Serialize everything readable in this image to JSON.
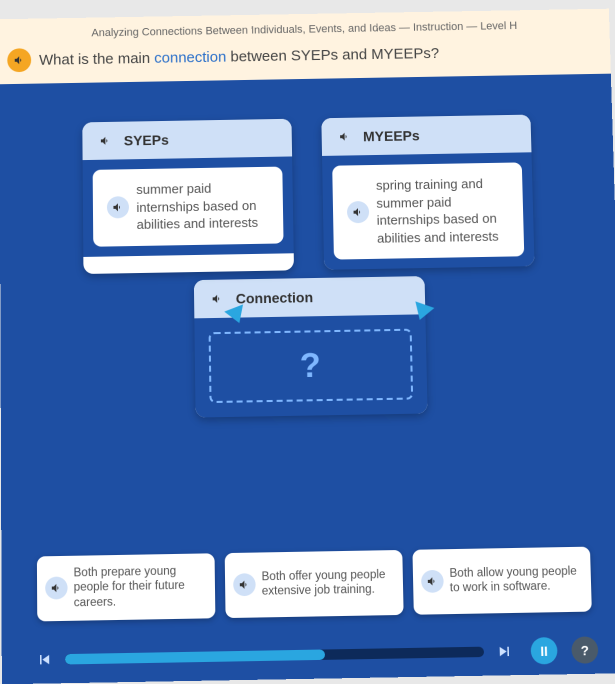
{
  "breadcrumb": "Analyzing Connections Between Individuals, Events, and Ideas — Instruction — Level H",
  "question": {
    "prefix": "What is the main ",
    "keyword": "connection",
    "suffix": " between SYEPs and MYEEPs?"
  },
  "colors": {
    "page_bg": "#1e4fa3",
    "header_bg": "#fff3e0",
    "card_header_bg": "#cfe0f7",
    "accent": "#2aa6e0",
    "dropzone_border": "#7fb7ff",
    "audio_primary": "#f5a623"
  },
  "left_card": {
    "title": "SYEPs",
    "desc": "summer paid internships based on abilities and interests"
  },
  "right_card": {
    "title": "MYEEPs",
    "desc": "spring training and summer paid internships based on abilities and interests"
  },
  "connection": {
    "title": "Connection",
    "placeholder": "?"
  },
  "answers": [
    "Both prepare young people for their future careers.",
    "Both offer young people extensive job training.",
    "Both allow young people to work in software."
  ],
  "progress_percent": 62,
  "controls": {
    "pause": "II",
    "help": "?"
  }
}
